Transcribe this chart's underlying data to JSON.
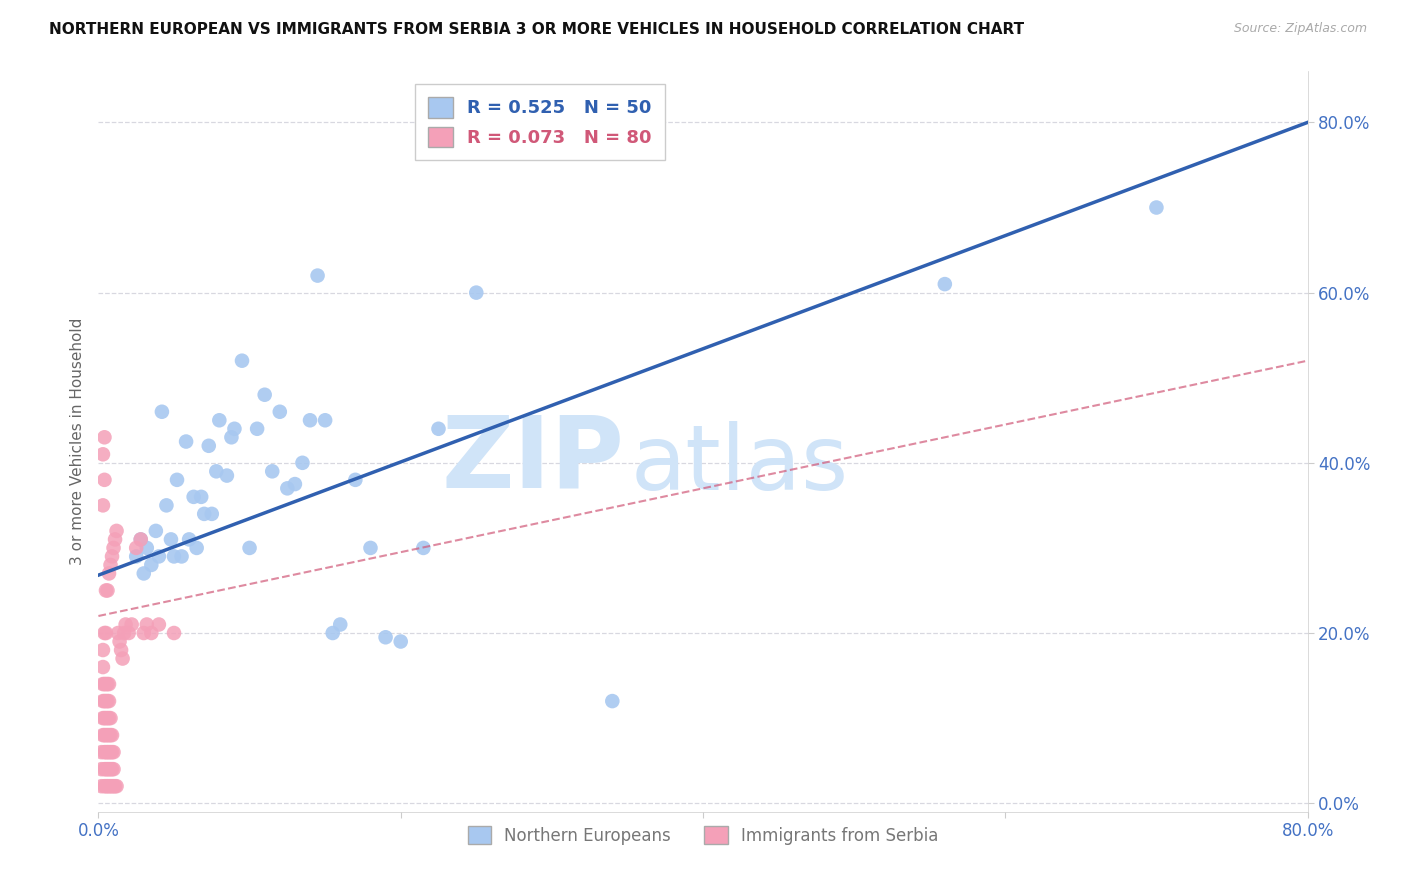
{
  "title": "NORTHERN EUROPEAN VS IMMIGRANTS FROM SERBIA 3 OR MORE VEHICLES IN HOUSEHOLD CORRELATION CHART",
  "source": "Source: ZipAtlas.com",
  "ylabel": "3 or more Vehicles in Household",
  "xlim": [
    0.0,
    0.8
  ],
  "ylim": [
    -0.01,
    0.86
  ],
  "xticks": [
    0.0,
    0.2,
    0.4,
    0.6,
    0.8
  ],
  "yticks": [
    0.0,
    0.2,
    0.4,
    0.6,
    0.8
  ],
  "xticklabels": [
    "0.0%",
    "",
    "",
    "",
    "80.0%"
  ],
  "yticklabels": [
    "0.0%",
    "20.0%",
    "40.0%",
    "60.0%",
    "80.0%"
  ],
  "top_legend_labels": [
    "R = 0.525   N = 50",
    "R = 0.073   N = 80"
  ],
  "bottom_legend_labels": [
    "Northern Europeans",
    "Immigrants from Serbia"
  ],
  "blue_color": "#a8c8f0",
  "pink_color": "#f4a0b8",
  "blue_line_color": "#3060b0",
  "pink_line_color": "#d05878",
  "tick_color": "#4472c4",
  "grid_color": "#d8d8e0",
  "watermark_zip": "ZIP",
  "watermark_atlas": "atlas",
  "watermark_color": "#d0e4f8",
  "blue_line_x0": 0.0,
  "blue_line_y0": 0.268,
  "blue_line_x1": 0.8,
  "blue_line_y1": 0.8,
  "pink_line_x0": 0.0,
  "pink_line_y0": 0.22,
  "pink_line_x1": 0.8,
  "pink_line_y1": 0.52,
  "blue_x": [
    0.025,
    0.028,
    0.03,
    0.032,
    0.035,
    0.038,
    0.04,
    0.042,
    0.045,
    0.048,
    0.05,
    0.052,
    0.055,
    0.058,
    0.06,
    0.063,
    0.065,
    0.068,
    0.07,
    0.073,
    0.075,
    0.078,
    0.08,
    0.085,
    0.088,
    0.09,
    0.095,
    0.1,
    0.105,
    0.11,
    0.115,
    0.12,
    0.125,
    0.13,
    0.135,
    0.14,
    0.145,
    0.15,
    0.155,
    0.16,
    0.17,
    0.18,
    0.19,
    0.2,
    0.215,
    0.225,
    0.25,
    0.34,
    0.56,
    0.7
  ],
  "blue_y": [
    0.29,
    0.31,
    0.27,
    0.3,
    0.28,
    0.32,
    0.29,
    0.46,
    0.35,
    0.31,
    0.29,
    0.38,
    0.29,
    0.425,
    0.31,
    0.36,
    0.3,
    0.36,
    0.34,
    0.42,
    0.34,
    0.39,
    0.45,
    0.385,
    0.43,
    0.44,
    0.52,
    0.3,
    0.44,
    0.48,
    0.39,
    0.46,
    0.37,
    0.375,
    0.4,
    0.45,
    0.62,
    0.45,
    0.2,
    0.21,
    0.38,
    0.3,
    0.195,
    0.19,
    0.3,
    0.44,
    0.6,
    0.12,
    0.61,
    0.7
  ],
  "pink_x": [
    0.002,
    0.002,
    0.002,
    0.003,
    0.003,
    0.003,
    0.003,
    0.003,
    0.003,
    0.004,
    0.004,
    0.004,
    0.004,
    0.004,
    0.004,
    0.004,
    0.004,
    0.005,
    0.005,
    0.005,
    0.005,
    0.005,
    0.005,
    0.005,
    0.005,
    0.005,
    0.006,
    0.006,
    0.006,
    0.006,
    0.006,
    0.006,
    0.006,
    0.006,
    0.007,
    0.007,
    0.007,
    0.007,
    0.007,
    0.007,
    0.007,
    0.007,
    0.008,
    0.008,
    0.008,
    0.008,
    0.008,
    0.008,
    0.009,
    0.009,
    0.009,
    0.009,
    0.009,
    0.01,
    0.01,
    0.01,
    0.01,
    0.011,
    0.011,
    0.012,
    0.012,
    0.013,
    0.014,
    0.015,
    0.016,
    0.017,
    0.018,
    0.02,
    0.022,
    0.025,
    0.028,
    0.03,
    0.032,
    0.035,
    0.003,
    0.004,
    0.003,
    0.004,
    0.04,
    0.05
  ],
  "pink_y": [
    0.02,
    0.04,
    0.06,
    0.08,
    0.1,
    0.12,
    0.14,
    0.16,
    0.18,
    0.02,
    0.04,
    0.06,
    0.08,
    0.1,
    0.12,
    0.14,
    0.2,
    0.02,
    0.04,
    0.06,
    0.08,
    0.1,
    0.12,
    0.14,
    0.2,
    0.25,
    0.02,
    0.04,
    0.06,
    0.08,
    0.1,
    0.12,
    0.14,
    0.25,
    0.02,
    0.04,
    0.06,
    0.08,
    0.1,
    0.12,
    0.14,
    0.27,
    0.02,
    0.04,
    0.06,
    0.08,
    0.1,
    0.28,
    0.02,
    0.04,
    0.06,
    0.08,
    0.29,
    0.02,
    0.04,
    0.06,
    0.3,
    0.02,
    0.31,
    0.02,
    0.32,
    0.2,
    0.19,
    0.18,
    0.17,
    0.2,
    0.21,
    0.2,
    0.21,
    0.3,
    0.31,
    0.2,
    0.21,
    0.2,
    0.35,
    0.38,
    0.41,
    0.43,
    0.21,
    0.2
  ]
}
